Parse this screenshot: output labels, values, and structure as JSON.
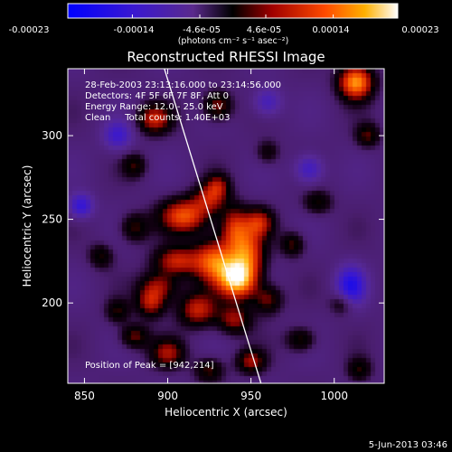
{
  "colorbar": {
    "ticks": [
      "-0.00023",
      "-0.00014",
      "-4.6e-05",
      "4.6e-05",
      "0.00014",
      "0.00023"
    ],
    "tick_values": [
      -0.00023,
      -0.00014,
      -4.6e-05,
      4.6e-05,
      0.00014,
      0.00023
    ],
    "range": [
      -0.00023,
      0.00023
    ],
    "units_line": "(photons cm⁻² s⁻¹ asec⁻²)"
  },
  "chart_data": {
    "type": "heatmap",
    "title": "Reconstructed RHESSI Image",
    "xlabel": "Heliocentric X (arcsec)",
    "ylabel": "Heliocentric Y (arcsec)",
    "xlim": [
      840,
      1030
    ],
    "ylim": [
      152,
      340
    ],
    "xticks": [
      850,
      900,
      950,
      1000
    ],
    "yticks": [
      200,
      250,
      300
    ],
    "annotations": [
      "28-Feb-2003 23:13:16.000 to 23:14:56.000",
      "Detectors: 4F 5F 6F 7F 8F, Att 0",
      "Energy Range: 12.0 - 25.0 keV",
      "Clean     Total counts: 1.40E+03"
    ],
    "peak_label": "Position of Peak = [942,214]",
    "peak": {
      "x": 942,
      "y": 214,
      "value": 0.00023
    },
    "limb": [
      {
        "x": 898,
        "y": 340
      },
      {
        "x": 956,
        "y": 152
      }
    ],
    "blobs": [
      {
        "x": 942,
        "y": 214,
        "sx": 8,
        "sy": 8,
        "a": 1.0
      },
      {
        "x": 928,
        "y": 225,
        "sx": 9,
        "sy": 9,
        "a": 0.75
      },
      {
        "x": 948,
        "y": 230,
        "sx": 7,
        "sy": 10,
        "a": 0.65
      },
      {
        "x": 940,
        "y": 245,
        "sx": 6,
        "sy": 9,
        "a": 0.55
      },
      {
        "x": 910,
        "y": 252,
        "sx": 10,
        "sy": 7,
        "a": 0.7
      },
      {
        "x": 925,
        "y": 262,
        "sx": 7,
        "sy": 6,
        "a": 0.45
      },
      {
        "x": 955,
        "y": 248,
        "sx": 6,
        "sy": 6,
        "a": 0.5
      },
      {
        "x": 930,
        "y": 270,
        "sx": 5,
        "sy": 5,
        "a": 0.4
      },
      {
        "x": 905,
        "y": 225,
        "sx": 9,
        "sy": 6,
        "a": 0.55
      },
      {
        "x": 895,
        "y": 210,
        "sx": 8,
        "sy": 6,
        "a": 0.45
      },
      {
        "x": 890,
        "y": 200,
        "sx": 6,
        "sy": 6,
        "a": 0.5
      },
      {
        "x": 918,
        "y": 196,
        "sx": 8,
        "sy": 7,
        "a": 0.55
      },
      {
        "x": 940,
        "y": 190,
        "sx": 7,
        "sy": 6,
        "a": 0.45
      },
      {
        "x": 960,
        "y": 202,
        "sx": 6,
        "sy": 6,
        "a": 0.4
      },
      {
        "x": 900,
        "y": 170,
        "sx": 7,
        "sy": 6,
        "a": 0.45
      },
      {
        "x": 880,
        "y": 180,
        "sx": 6,
        "sy": 5,
        "a": 0.4
      },
      {
        "x": 950,
        "y": 165,
        "sx": 6,
        "sy": 5,
        "a": 0.45
      },
      {
        "x": 925,
        "y": 160,
        "sx": 6,
        "sy": 5,
        "a": 0.35
      },
      {
        "x": 980,
        "y": 178,
        "sx": 6,
        "sy": 5,
        "a": 0.35
      },
      {
        "x": 975,
        "y": 235,
        "sx": 5,
        "sy": 5,
        "a": 0.35
      },
      {
        "x": 990,
        "y": 260,
        "sx": 6,
        "sy": 5,
        "a": 0.3
      },
      {
        "x": 880,
        "y": 245,
        "sx": 6,
        "sy": 6,
        "a": 0.35
      },
      {
        "x": 860,
        "y": 228,
        "sx": 5,
        "sy": 5,
        "a": 0.3
      },
      {
        "x": 870,
        "y": 195,
        "sx": 5,
        "sy": 5,
        "a": 0.3
      },
      {
        "x": 892,
        "y": 310,
        "sx": 7,
        "sy": 6,
        "a": 0.55
      },
      {
        "x": 930,
        "y": 318,
        "sx": 6,
        "sy": 6,
        "a": 0.45
      },
      {
        "x": 1013,
        "y": 332,
        "sx": 7,
        "sy": 7,
        "a": 0.9
      },
      {
        "x": 1020,
        "y": 300,
        "sx": 5,
        "sy": 5,
        "a": 0.35
      },
      {
        "x": 880,
        "y": 282,
        "sx": 5,
        "sy": 5,
        "a": 0.3
      },
      {
        "x": 1005,
        "y": 200,
        "sx": 5,
        "sy": 5,
        "a": 0.3
      },
      {
        "x": 960,
        "y": 290,
        "sx": 5,
        "sy": 5,
        "a": 0.25
      },
      {
        "x": 1015,
        "y": 160,
        "sx": 5,
        "sy": 5,
        "a": 0.3
      }
    ],
    "neg_blobs": [
      {
        "x": 1010,
        "y": 210,
        "sx": 6,
        "sy": 8,
        "a": 0.6
      },
      {
        "x": 848,
        "y": 258,
        "sx": 5,
        "sy": 5,
        "a": 0.5
      },
      {
        "x": 985,
        "y": 280,
        "sx": 6,
        "sy": 6,
        "a": 0.4
      },
      {
        "x": 870,
        "y": 300,
        "sx": 6,
        "sy": 6,
        "a": 0.4
      },
      {
        "x": 960,
        "y": 320,
        "sx": 6,
        "sy": 6,
        "a": 0.35
      }
    ]
  },
  "footer": {
    "date": "5-Jun-2013 03:46"
  }
}
